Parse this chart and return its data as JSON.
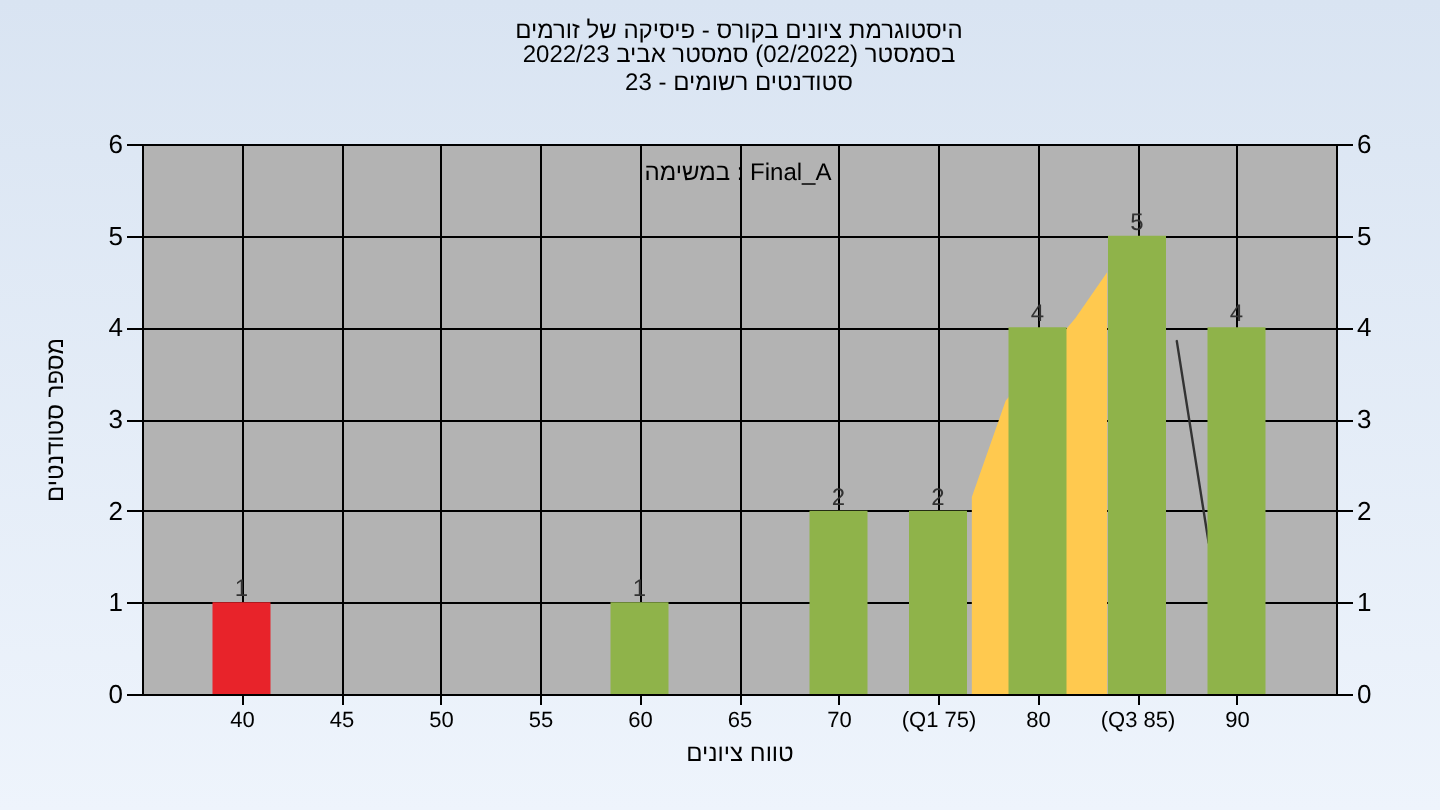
{
  "chart_data": {
    "type": "bar",
    "title": "היסטוגרמת ציונים בקורס - פיסיקה של זורמים",
    "subtitle": "בסמסטר  (02/2022)  סמסטר אביב 2022/23\nסטודנטים רשומים - 23",
    "xlabel": "טווח ציונים",
    "ylabel": "מספר סטודנטים",
    "annotations": [
      "במשימה : Final_A"
    ],
    "x": [
      40,
      45,
      50,
      55,
      60,
      65,
      70,
      75,
      80,
      85,
      90
    ],
    "series": [
      {
        "type": "area",
        "color": "#ffc94f",
        "x": [
          76.7,
          78.4,
          81.9,
          83.5
        ],
        "values": [
          2.15,
          3.2,
          4.1,
          4.6
        ]
      },
      {
        "type": "line",
        "color": "#333333",
        "x": [
          87,
          88.6
        ],
        "values": [
          3.85,
          1.65
        ]
      },
      {
        "colors": [
          "#e8232a",
          "#8fb34a",
          "#8fb34a",
          "#8fb34a",
          "#8fb34a",
          "#8fb34a",
          "#8fb34a",
          "#8fb34a",
          "#8fb34a",
          "#8fb34a",
          "#8fb34a"
        ],
        "values": [
          1,
          0,
          0,
          0,
          1,
          0,
          2,
          2,
          4,
          5,
          4
        ],
        "value_labels": [
          "1",
          null,
          null,
          null,
          "1",
          null,
          "2",
          "2",
          "4",
          "5",
          "4"
        ]
      }
    ],
    "xlim": [
      35,
      95
    ],
    "xticks": [
      40,
      45,
      50,
      55,
      60,
      65,
      70,
      {
        "value": 75,
        "label": "(Q1 75)"
      },
      80,
      {
        "value": 85,
        "label": "(Q3 85)"
      },
      90
    ],
    "ylim": [
      0,
      6
    ],
    "yticks": [
      0,
      1,
      2,
      3,
      4,
      5,
      6
    ],
    "y2lim": [
      0,
      6
    ],
    "y2ticks": [
      0,
      1,
      2,
      3,
      4,
      5,
      6
    ],
    "grid": true
  }
}
